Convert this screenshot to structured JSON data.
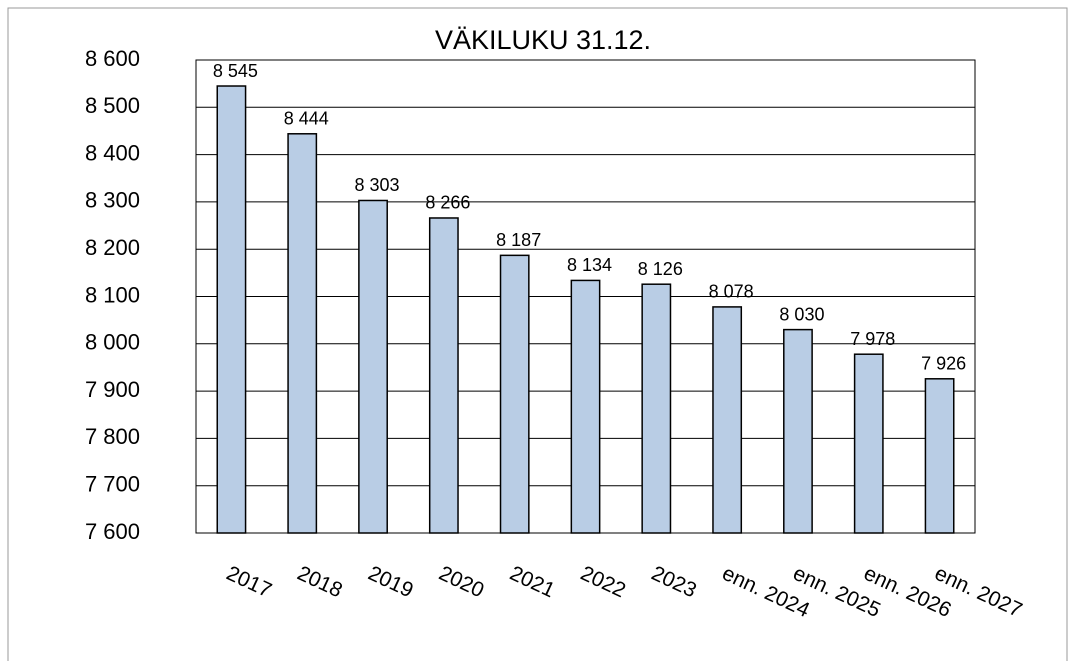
{
  "chart_data": {
    "type": "bar",
    "title": "VÄKILUKU 31.12.",
    "categories": [
      "2017",
      "2018",
      "2019",
      "2020",
      "2021",
      "2022",
      "2023",
      "enn. 2024",
      "enn. 2025",
      "enn. 2026",
      "enn. 2027"
    ],
    "values": [
      8545,
      8444,
      8303,
      8266,
      8187,
      8134,
      8126,
      8078,
      8030,
      7978,
      7926
    ],
    "value_labels": [
      "8 545",
      "8 444",
      "8 303",
      "8 266",
      "8 187",
      "8 134",
      "8 126",
      "8 078",
      "8 030",
      "7 978",
      "7 926"
    ],
    "color": "#b9cde5",
    "ylim": [
      7600,
      8600
    ],
    "yticks": [
      {
        "value": 7600,
        "label": "7 600"
      },
      {
        "value": 7700,
        "label": "7 700"
      },
      {
        "value": 7800,
        "label": "7 800"
      },
      {
        "value": 7900,
        "label": "7 900"
      },
      {
        "value": 8000,
        "label": "8 000"
      },
      {
        "value": 8100,
        "label": "8 100"
      },
      {
        "value": 8200,
        "label": "8 200"
      },
      {
        "value": 8300,
        "label": "8 300"
      },
      {
        "value": 8400,
        "label": "8 400"
      },
      {
        "value": 8500,
        "label": "8 500"
      },
      {
        "value": 8600,
        "label": "8 600"
      }
    ],
    "grid": true
  }
}
